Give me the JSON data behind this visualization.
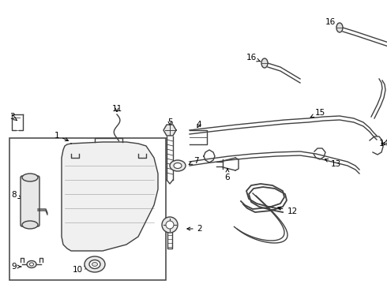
{
  "bg_color": "#ffffff",
  "line_color": "#404040",
  "text_color": "#000000",
  "fig_width": 4.9,
  "fig_height": 3.6,
  "dpi": 100,
  "lw": 1.0,
  "fs": 7.5
}
